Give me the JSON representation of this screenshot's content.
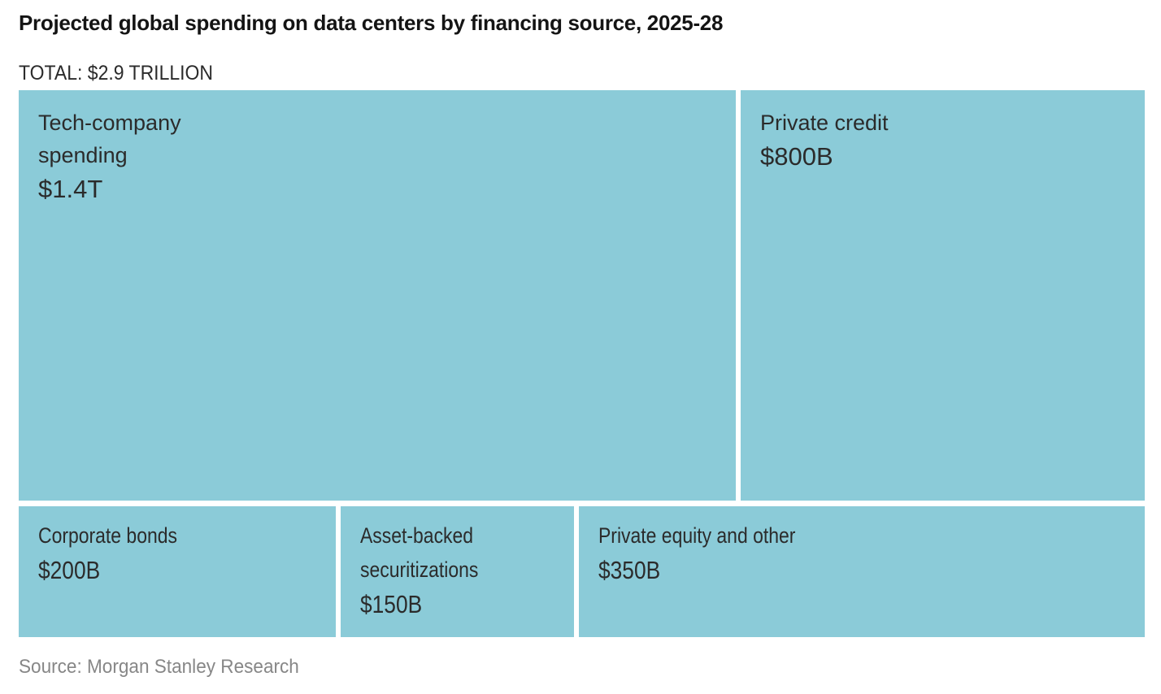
{
  "chart_data": {
    "type": "treemap",
    "title": "Projected global spending on data centers by financing source, 2025-28",
    "total_label": "TOTAL: $2.9 TRILLION",
    "total_value_trillions": 2.9,
    "source": "Source: Morgan Stanley Research",
    "tile_color": "#8bcbd8",
    "text_color": "#2b2b2b",
    "items": [
      {
        "name": "Tech-company spending",
        "value_label": "$1.4T",
        "value_billions": 1400
      },
      {
        "name": "Private credit",
        "value_label": "$800B",
        "value_billions": 800
      },
      {
        "name": "Corporate bonds",
        "value_label": "$200B",
        "value_billions": 200
      },
      {
        "name": "Asset-backed securitizations",
        "value_label": "$150B",
        "value_billions": 150
      },
      {
        "name": "Private equity and other",
        "value_label": "$350B",
        "value_billions": 350
      }
    ]
  }
}
